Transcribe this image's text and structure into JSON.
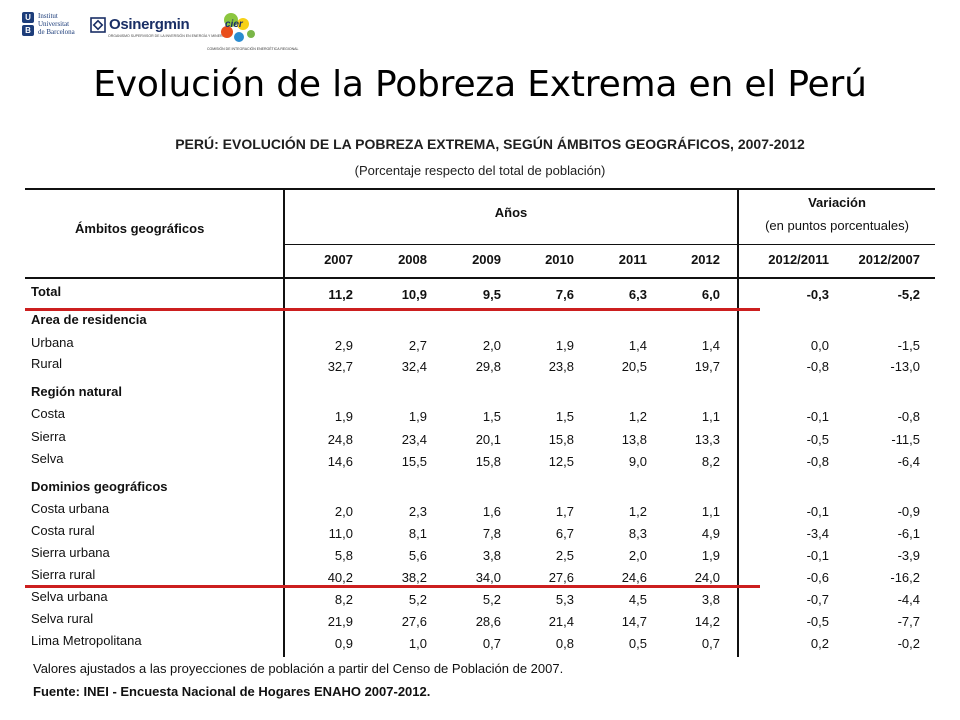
{
  "logos": {
    "ub_initials": [
      "U",
      "B"
    ],
    "ub_text": [
      "Institut",
      "Universitat",
      "de Barcelona"
    ],
    "osinergmin": "Osinergmin",
    "osinergmin_sub": "ORGANISMO SUPERVISOR DE LA INVERSIÓN EN ENERGÍA Y MINERÍA",
    "cier": "cier",
    "cier_sub": "COMISIÓN DE INTEGRACIÓN ENERGÉTICA REGIONAL"
  },
  "slide_title": "Evolución de la Pobreza Extrema en el Perú",
  "table": {
    "title": "PERÚ: EVOLUCIÓN DE LA POBREZA EXTREMA, SEGÚN ÁMBITOS GEOGRÁFICOS, 2007-2012",
    "subtitle": "(Porcentaje respecto del total de población)",
    "header_row_label": "Ámbitos geográficos",
    "header_years_group": "Años",
    "header_variation_group": "Variación",
    "header_variation_sub": "(en puntos porcentuales)",
    "columns": [
      "2007",
      "2008",
      "2009",
      "2010",
      "2011",
      "2012",
      "2012/2011",
      "2012/2007"
    ],
    "rows": [
      {
        "label": "Total",
        "bold": true,
        "values": [
          "11,2",
          "10,9",
          "9,5",
          "7,6",
          "6,3",
          "6,0",
          "-0,3",
          "-5,2"
        ]
      },
      {
        "label": "Area de residencia",
        "bold": true,
        "values": []
      },
      {
        "label": "Urbana",
        "bold": false,
        "values": [
          "2,9",
          "2,7",
          "2,0",
          "1,9",
          "1,4",
          "1,4",
          "0,0",
          "-1,5"
        ]
      },
      {
        "label": "Rural",
        "bold": false,
        "values": [
          "32,7",
          "32,4",
          "29,8",
          "23,8",
          "20,5",
          "19,7",
          "-0,8",
          "-13,0"
        ]
      },
      {
        "label": "Región natural",
        "bold": true,
        "values": []
      },
      {
        "label": "Costa",
        "bold": false,
        "values": [
          "1,9",
          "1,9",
          "1,5",
          "1,5",
          "1,2",
          "1,1",
          "-0,1",
          "-0,8"
        ]
      },
      {
        "label": "Sierra",
        "bold": false,
        "values": [
          "24,8",
          "23,4",
          "20,1",
          "15,8",
          "13,8",
          "13,3",
          "-0,5",
          "-11,5"
        ]
      },
      {
        "label": "Selva",
        "bold": false,
        "values": [
          "14,6",
          "15,5",
          "15,8",
          "12,5",
          "9,0",
          "8,2",
          "-0,8",
          "-6,4"
        ]
      },
      {
        "label": "Dominios geográficos",
        "bold": true,
        "values": []
      },
      {
        "label": "Costa urbana",
        "bold": false,
        "values": [
          "2,0",
          "2,3",
          "1,6",
          "1,7",
          "1,2",
          "1,1",
          "-0,1",
          "-0,9"
        ]
      },
      {
        "label": "Costa rural",
        "bold": false,
        "values": [
          "11,0",
          "8,1",
          "7,8",
          "6,7",
          "8,3",
          "4,9",
          "-3,4",
          "-6,1"
        ]
      },
      {
        "label": "Sierra urbana",
        "bold": false,
        "values": [
          "5,8",
          "5,6",
          "3,8",
          "2,5",
          "2,0",
          "1,9",
          "-0,1",
          "-3,9"
        ]
      },
      {
        "label": "Sierra rural",
        "bold": false,
        "values": [
          "40,2",
          "38,2",
          "34,0",
          "27,6",
          "24,6",
          "24,0",
          "-0,6",
          "-16,2"
        ]
      },
      {
        "label": "Selva urbana",
        "bold": false,
        "values": [
          "8,2",
          "5,2",
          "5,2",
          "5,3",
          "4,5",
          "3,8",
          "-0,7",
          "-4,4"
        ]
      },
      {
        "label": "Selva rural",
        "bold": false,
        "values": [
          "21,9",
          "27,6",
          "28,6",
          "21,4",
          "14,7",
          "14,2",
          "-0,5",
          "-7,7"
        ]
      },
      {
        "label": "Lima Metropolitana",
        "bold": false,
        "values": [
          "0,9",
          "1,0",
          "0,7",
          "0,8",
          "0,5",
          "0,7",
          "0,2",
          "-0,2"
        ]
      }
    ],
    "footnote": "Valores ajustados a las proyecciones de población a partir del Censo de Población de 2007.",
    "source": "Fuente: INEI - Encuesta Nacional de Hogares ENAHO 2007-2012.",
    "highlight_color": "#cc1f1f"
  }
}
